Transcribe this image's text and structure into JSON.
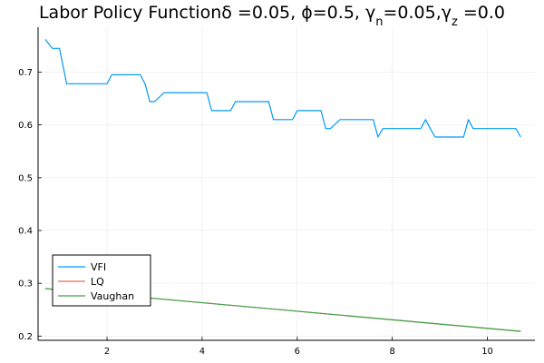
{
  "chart_data": {
    "type": "line",
    "title": {
      "main": "Labor Policy Function",
      "params": [
        {
          "sym": "δ",
          "sub": "",
          "rest": " =0.05, "
        },
        {
          "sym": "ϕ",
          "sub": "",
          "rest": "=0.5, "
        },
        {
          "sym": "γ",
          "sub": "n",
          "rest": "=0.05,"
        },
        {
          "sym": "γ",
          "sub": "z",
          "rest": " =0.0"
        }
      ]
    },
    "xlabel": "",
    "ylabel": "",
    "xlim": [
      0.55,
      11.0
    ],
    "ylim": [
      0.192,
      0.785
    ],
    "xticks": [
      2,
      4,
      6,
      8,
      10
    ],
    "yticks": [
      0.2,
      0.3,
      0.4,
      0.5,
      0.6,
      0.7
    ],
    "ytick_labels": [
      "0.2",
      "0.3",
      "0.4",
      "0.5",
      "0.6",
      "0.7"
    ],
    "grid": true,
    "legend": "bottom-left",
    "series": [
      {
        "name": "VFI",
        "color": "#009AFA",
        "x": [
          0.7,
          0.85,
          1.0,
          1.15,
          1.2,
          2.0,
          2.1,
          2.2,
          2.7,
          2.8,
          2.9,
          3.0,
          3.2,
          3.3,
          4.1,
          4.2,
          4.3,
          4.6,
          4.7,
          4.8,
          5.4,
          5.5,
          5.6,
          5.9,
          6.0,
          6.1,
          6.5,
          6.6,
          6.7,
          6.9,
          7.0,
          7.1,
          7.6,
          7.7,
          7.8,
          7.9,
          8.0,
          8.6,
          8.7,
          8.8,
          8.9,
          9.4,
          9.5,
          9.6,
          9.7,
          10.4,
          10.5,
          10.6,
          10.7
        ],
        "y": [
          0.762,
          0.745,
          0.745,
          0.678,
          0.678,
          0.678,
          0.695,
          0.695,
          0.695,
          0.678,
          0.644,
          0.644,
          0.661,
          0.661,
          0.661,
          0.627,
          0.627,
          0.627,
          0.644,
          0.644,
          0.644,
          0.61,
          0.61,
          0.61,
          0.627,
          0.627,
          0.627,
          0.593,
          0.593,
          0.61,
          0.61,
          0.61,
          0.61,
          0.577,
          0.593,
          0.593,
          0.593,
          0.593,
          0.61,
          0.593,
          0.577,
          0.577,
          0.577,
          0.61,
          0.593,
          0.593,
          0.593,
          0.593,
          0.577
        ]
      },
      {
        "name": "LQ",
        "color": "#E26F46",
        "x": [
          0.7,
          10.7
        ],
        "y": [
          0.29,
          0.209
        ]
      },
      {
        "name": "Vaughan",
        "color": "#3DA44D",
        "x": [
          0.7,
          10.7
        ],
        "y": [
          0.29,
          0.209
        ]
      }
    ]
  }
}
